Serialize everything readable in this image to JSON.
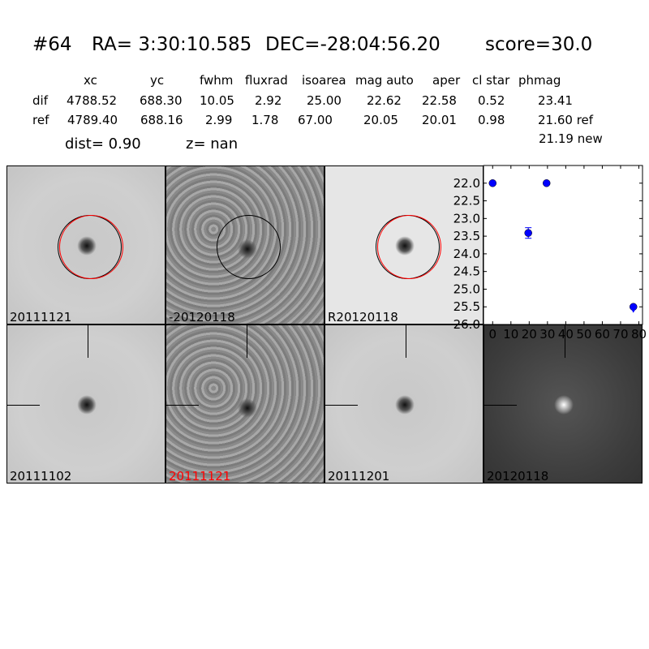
{
  "header": {
    "id": "#64",
    "ra": "RA= 3:30:10.585",
    "dec": "DEC=-28:04:56.20",
    "score": "score=30.0"
  },
  "table": {
    "columns": [
      "xc",
      "yc",
      "fwhm",
      "fluxrad",
      "isoarea",
      "mag auto",
      "aper",
      "cl star",
      "phmag"
    ],
    "rows": [
      {
        "label": "dif",
        "values": [
          "4788.52",
          "688.30",
          "10.05",
          "2.92",
          "25.00",
          "22.62",
          "22.58",
          "0.52",
          "23.41"
        ]
      },
      {
        "label": "ref",
        "values": [
          "4789.40",
          "688.16",
          "2.99",
          "1.78",
          "67.00",
          "20.05",
          "20.01",
          "0.98",
          "21.60 ref"
        ]
      }
    ],
    "extra_phmag": "21.19 new",
    "dist": "dist=  0.90",
    "z": "z=   nan"
  },
  "stamps_top": [
    {
      "label": "20111121",
      "style": "light",
      "circles": [
        "black",
        "red"
      ]
    },
    {
      "label": "-20120118",
      "style": "noisy",
      "circles": [
        "black"
      ]
    },
    {
      "label": "R20120118",
      "style": "lighter",
      "circles": [
        "black",
        "red"
      ]
    }
  ],
  "stamps_bottom": [
    {
      "label": "20111102",
      "label_color": "#000000",
      "style": "light"
    },
    {
      "label": "20111121",
      "label_color": "#ff0000",
      "style": "noisy"
    },
    {
      "label": "20111201",
      "label_color": "#000000",
      "style": "light"
    },
    {
      "label": "20120118",
      "label_color": "#000000",
      "style": "dark"
    }
  ],
  "chart_data": {
    "type": "scatter",
    "xlim": [
      -5,
      82
    ],
    "ylim": [
      26.0,
      21.5
    ],
    "y_inverted": true,
    "xticks": [
      "0",
      "10",
      "20",
      "30",
      "40",
      "50",
      "60",
      "70",
      "80"
    ],
    "yticks": [
      "22.0",
      "22.5",
      "23.0",
      "23.5",
      "24.0",
      "24.5",
      "25.0",
      "25.5",
      "26.0"
    ],
    "marker_color": "#0000ff",
    "points": [
      {
        "x": 0,
        "y": 22.0
      },
      {
        "x": 19.5,
        "y": 23.41,
        "yerr": 0.15
      },
      {
        "x": 29.5,
        "y": 22.0
      },
      {
        "x": 77,
        "y": 25.5
      },
      {
        "x": 77,
        "y": 25.6,
        "marker": "triangle-down"
      }
    ]
  }
}
